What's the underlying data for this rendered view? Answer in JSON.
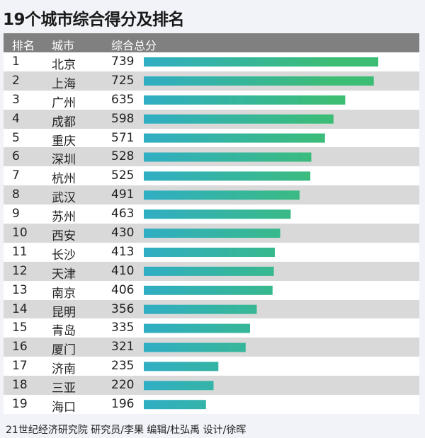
{
  "chart_data": {
    "type": "bar",
    "orientation": "horizontal",
    "title": "19个城市综合得分及排名",
    "columns": [
      "排名",
      "城市",
      "综合总分"
    ],
    "rows": [
      {
        "rank": "1",
        "city": "北京",
        "score": 739
      },
      {
        "rank": "2",
        "city": "上海",
        "score": 725
      },
      {
        "rank": "3",
        "city": "广州",
        "score": 635
      },
      {
        "rank": "4",
        "city": "成都",
        "score": 598
      },
      {
        "rank": "5",
        "city": "重庆",
        "score": 571
      },
      {
        "rank": "6",
        "city": "深圳",
        "score": 528
      },
      {
        "rank": "7",
        "city": "杭州",
        "score": 525
      },
      {
        "rank": "8",
        "city": "武汉",
        "score": 491
      },
      {
        "rank": "9",
        "city": "苏州",
        "score": 463
      },
      {
        "rank": "10",
        "city": "西安",
        "score": 430
      },
      {
        "rank": "11",
        "city": "长沙",
        "score": 413
      },
      {
        "rank": "12",
        "city": "天津",
        "score": 410
      },
      {
        "rank": "13",
        "city": "南京",
        "score": 406
      },
      {
        "rank": "14",
        "city": "昆明",
        "score": 356
      },
      {
        "rank": "15",
        "city": "青岛",
        "score": 335
      },
      {
        "rank": "16",
        "city": "厦门",
        "score": 321
      },
      {
        "rank": "17",
        "city": "济南",
        "score": 235
      },
      {
        "rank": "18",
        "city": "三亚",
        "score": 220
      },
      {
        "rank": "19",
        "city": "海口",
        "score": 196
      }
    ],
    "colors": {
      "bar_start": "#30aec4",
      "bar_end": "#3cbd74",
      "header_bg": "#808080",
      "row_alt": "#d9d9d9"
    }
  },
  "footer": "21世纪经济研究院 研究员/李果  编辑/杜弘禹  设计/徐晖"
}
